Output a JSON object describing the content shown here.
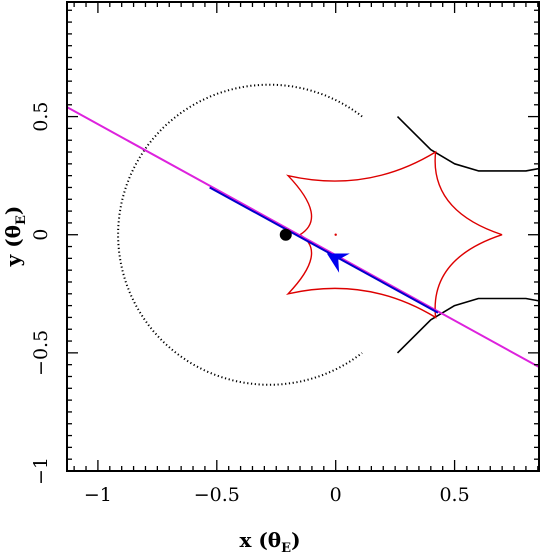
{
  "chart_data": {
    "type": "scatter",
    "xlabel": {
      "main": "x (θ",
      "sub": "E",
      "close": ")"
    },
    "ylabel": {
      "main": "y (θ",
      "sub": "E",
      "close": ")"
    },
    "xlim": [
      -1.13,
      0.855
    ],
    "ylim": [
      -1.0,
      0.985
    ],
    "x_ticks": [
      -1,
      -0.5,
      0,
      0.5
    ],
    "x_tick_labels": [
      "−1",
      "−0.5",
      "0",
      "0.5"
    ],
    "y_ticks": [
      -1,
      -0.5,
      0,
      0.5
    ],
    "y_tick_labels": [
      "−1",
      "−0.5",
      "0",
      "0.5"
    ],
    "grid": false,
    "colors": {
      "critical_curve": "#000000",
      "caustic": "#dd0000",
      "trajectory": "#dd22dd",
      "trajectory_observed": "#0000cc",
      "lens": "#000000",
      "source_arrow": "#0000ee"
    },
    "critical_curve": {
      "style": "dotted",
      "center": [
        -0.28,
        0.0
      ],
      "radius": 0.635,
      "open_side_arcs": [
        [
          [
            0.26,
            0.5
          ],
          [
            0.4,
            0.36
          ],
          [
            0.5,
            0.3
          ],
          [
            0.6,
            0.27
          ],
          [
            0.7,
            0.27
          ],
          [
            0.8,
            0.27
          ],
          [
            0.855,
            0.28
          ]
        ],
        [
          [
            0.26,
            -0.5
          ],
          [
            0.4,
            -0.36
          ],
          [
            0.5,
            -0.3
          ],
          [
            0.6,
            -0.27
          ],
          [
            0.7,
            -0.27
          ],
          [
            0.8,
            -0.27
          ],
          [
            0.855,
            -0.28
          ]
        ]
      ]
    },
    "caustic_vertices": [
      [
        0.7,
        0.0
      ],
      [
        0.42,
        0.35
      ],
      [
        -0.2,
        0.25
      ],
      [
        -0.15,
        0.0
      ],
      [
        -0.2,
        -0.25
      ],
      [
        0.42,
        -0.35
      ]
    ],
    "trajectory_line": [
      [
        -1.13,
        0.54
      ],
      [
        0.855,
        -0.56
      ]
    ],
    "trajectory_observed_segment": [
      [
        -0.53,
        0.2
      ],
      [
        0.43,
        -0.33
      ]
    ],
    "lens_position": [
      -0.21,
      0.0
    ],
    "source_position": [
      0.0,
      -0.1
    ],
    "caustic_center_dot": [
      0.0,
      0.0
    ]
  }
}
